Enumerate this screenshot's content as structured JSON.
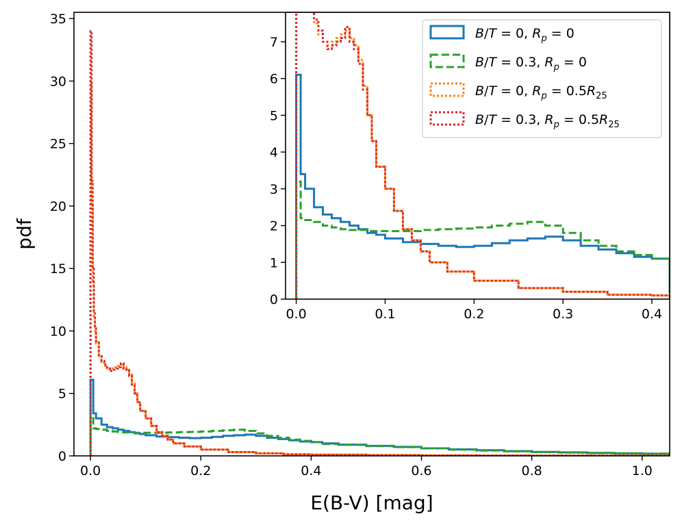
{
  "chart_data": [
    {
      "panel": "main",
      "type": "line",
      "drawstyle": "steps",
      "xlabel": "E(B-V) [mag]",
      "ylabel": "pdf",
      "xlim": [
        -0.03,
        1.05
      ],
      "ylim": [
        0,
        35.5
      ],
      "xticks": [
        0.0,
        0.2,
        0.4,
        0.6,
        0.8,
        1.0
      ],
      "xtick_labels": [
        "0.0",
        "0.2",
        "0.4",
        "0.6",
        "0.8",
        "1.0"
      ],
      "yticks": [
        0,
        5,
        10,
        15,
        20,
        25,
        30,
        35
      ],
      "ytick_labels": [
        "0",
        "5",
        "10",
        "15",
        "20",
        "25",
        "30",
        "35"
      ],
      "series": [
        {
          "key": "bt0_rp0",
          "name": "B/T = 0, R_p = 0",
          "color": "#1f77b4",
          "dash": "solid",
          "x": [
            0.0,
            0.005,
            0.01,
            0.02,
            0.03,
            0.04,
            0.05,
            0.06,
            0.07,
            0.08,
            0.09,
            0.1,
            0.12,
            0.14,
            0.16,
            0.18,
            0.2,
            0.22,
            0.24,
            0.26,
            0.28,
            0.3,
            0.32,
            0.34,
            0.36,
            0.38,
            0.4,
            0.42,
            0.45,
            0.5,
            0.55,
            0.6,
            0.65,
            0.7,
            0.75,
            0.8,
            0.85,
            0.9,
            0.95,
            1.0,
            1.05
          ],
          "y": [
            6.1,
            3.4,
            3.0,
            2.5,
            2.3,
            2.2,
            2.1,
            2.0,
            1.9,
            1.8,
            1.75,
            1.65,
            1.55,
            1.5,
            1.45,
            1.42,
            1.45,
            1.52,
            1.6,
            1.65,
            1.7,
            1.6,
            1.45,
            1.35,
            1.25,
            1.15,
            1.1,
            1.0,
            0.9,
            0.8,
            0.72,
            0.6,
            0.52,
            0.45,
            0.38,
            0.32,
            0.28,
            0.24,
            0.2,
            0.18,
            0.16
          ]
        },
        {
          "key": "bt03_rp0",
          "name": "B/T = 0.3, R_p = 0",
          "color": "#2ca02c",
          "dash": "dashed",
          "x": [
            0.0,
            0.005,
            0.01,
            0.02,
            0.03,
            0.04,
            0.05,
            0.06,
            0.08,
            0.1,
            0.12,
            0.14,
            0.16,
            0.18,
            0.2,
            0.22,
            0.24,
            0.26,
            0.28,
            0.3,
            0.32,
            0.34,
            0.36,
            0.38,
            0.4,
            0.42,
            0.45,
            0.5,
            0.55,
            0.6,
            0.65,
            0.7,
            0.75,
            0.8,
            0.85,
            0.9,
            0.95,
            1.0,
            1.05
          ],
          "y": [
            3.2,
            2.2,
            2.15,
            2.1,
            2.0,
            1.95,
            1.9,
            1.88,
            1.85,
            1.85,
            1.85,
            1.88,
            1.9,
            1.92,
            1.95,
            2.0,
            2.05,
            2.1,
            2.0,
            1.8,
            1.6,
            1.45,
            1.3,
            1.2,
            1.1,
            0.95,
            0.88,
            0.78,
            0.7,
            0.6,
            0.5,
            0.43,
            0.36,
            0.3,
            0.26,
            0.22,
            0.19,
            0.17,
            0.15
          ]
        },
        {
          "key": "bt0_rp05",
          "name": "B/T = 0, R_p = 0.5R_25",
          "color": "#ff7f0e",
          "dash": "dotted",
          "x": [
            0.0,
            0.002,
            0.004,
            0.006,
            0.008,
            0.01,
            0.015,
            0.02,
            0.025,
            0.03,
            0.035,
            0.04,
            0.045,
            0.05,
            0.055,
            0.06,
            0.065,
            0.07,
            0.075,
            0.08,
            0.085,
            0.09,
            0.1,
            0.11,
            0.12,
            0.13,
            0.14,
            0.15,
            0.17,
            0.2,
            0.25,
            0.3,
            0.35,
            0.4,
            0.5,
            0.6,
            0.7,
            0.8,
            1.05
          ],
          "y": [
            30.0,
            20.0,
            14.0,
            11.0,
            10.0,
            9.0,
            8.0,
            7.5,
            7.2,
            7.0,
            6.9,
            7.0,
            7.1,
            7.2,
            7.3,
            7.1,
            6.9,
            6.5,
            5.8,
            5.0,
            4.3,
            3.6,
            3.0,
            2.4,
            1.9,
            1.6,
            1.3,
            1.0,
            0.75,
            0.5,
            0.3,
            0.2,
            0.12,
            0.1,
            0.06,
            0.04,
            0.03,
            0.02,
            0.01
          ]
        },
        {
          "key": "bt03_rp05",
          "name": "B/T = 0.3, R_p = 0.5R_25",
          "color": "#d62728",
          "dash": "dotted",
          "x": [
            0.0,
            0.002,
            0.004,
            0.006,
            0.008,
            0.01,
            0.015,
            0.02,
            0.025,
            0.03,
            0.035,
            0.04,
            0.045,
            0.05,
            0.055,
            0.06,
            0.065,
            0.07,
            0.075,
            0.08,
            0.085,
            0.09,
            0.1,
            0.11,
            0.12,
            0.13,
            0.14,
            0.15,
            0.17,
            0.2,
            0.25,
            0.3,
            0.35,
            0.4,
            0.5,
            0.6,
            0.7,
            0.8,
            1.05
          ],
          "y": [
            34.0,
            22.0,
            15.0,
            11.5,
            10.2,
            9.2,
            8.1,
            7.6,
            7.3,
            7.0,
            6.8,
            6.9,
            7.0,
            7.1,
            7.4,
            7.0,
            6.8,
            6.4,
            5.7,
            5.0,
            4.3,
            3.6,
            3.0,
            2.4,
            1.9,
            1.6,
            1.3,
            1.0,
            0.75,
            0.5,
            0.3,
            0.2,
            0.12,
            0.1,
            0.06,
            0.04,
            0.03,
            0.02,
            0.01
          ]
        }
      ]
    },
    {
      "panel": "inset",
      "type": "line",
      "drawstyle": "steps",
      "xlim": [
        -0.012,
        0.42
      ],
      "ylim": [
        0,
        7.8
      ],
      "xticks": [
        0.0,
        0.1,
        0.2,
        0.3,
        0.4
      ],
      "xtick_labels": [
        "0.0",
        "0.1",
        "0.2",
        "0.3",
        "0.4"
      ],
      "yticks": [
        0,
        1,
        2,
        3,
        4,
        5,
        6,
        7
      ],
      "ytick_labels": [
        "0",
        "1",
        "2",
        "3",
        "4",
        "5",
        "6",
        "7"
      ],
      "legend_position": "top-right",
      "series_ref": "same as main panel, zoomed on 0–0.42 mag"
    }
  ]
}
